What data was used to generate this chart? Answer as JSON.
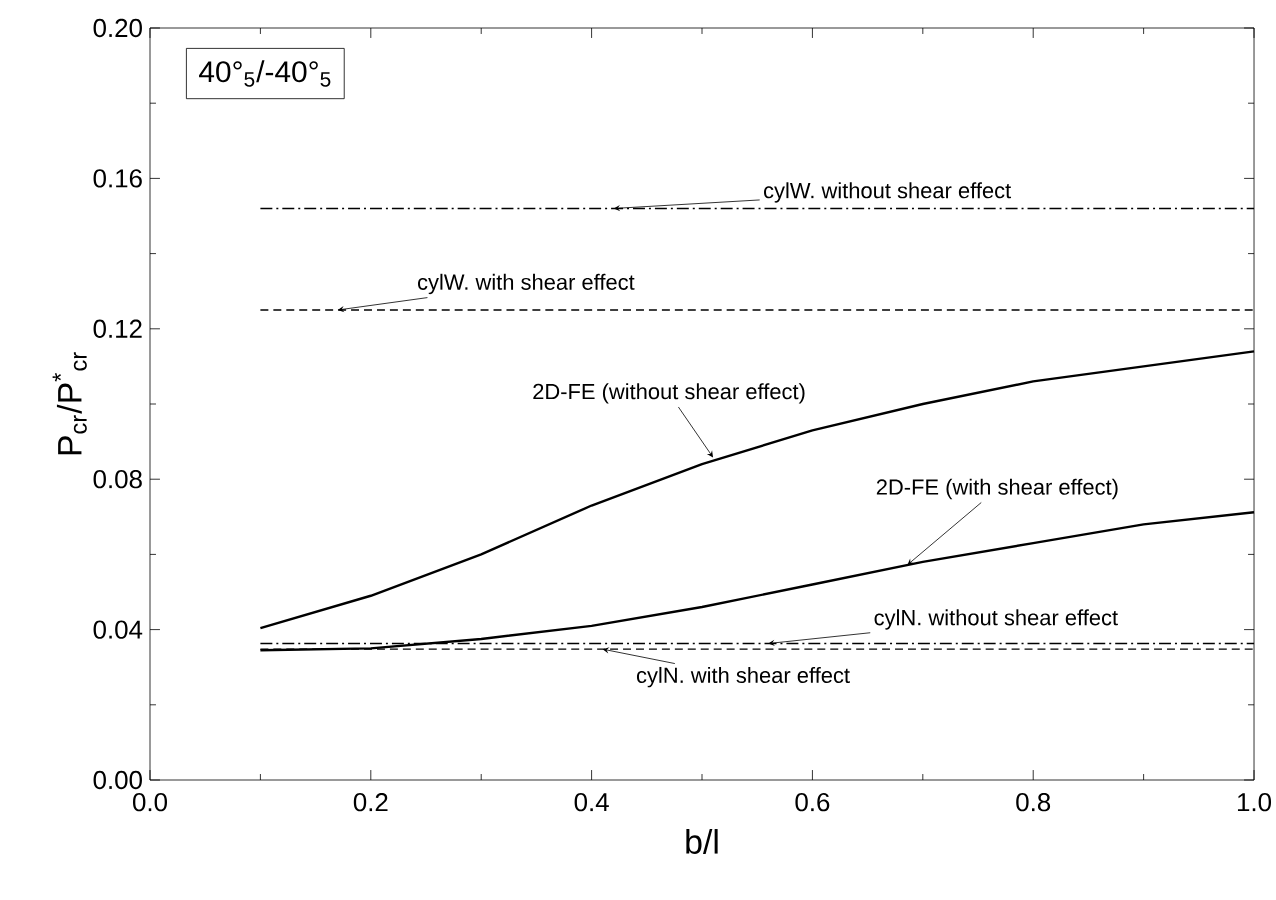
{
  "chart_data": {
    "type": "line",
    "xlabel": "b/l",
    "ylabel": "P$_{cr}$/P$^{*}$$_{cr}$",
    "xlim": [
      0,
      1
    ],
    "ylim": [
      0,
      0.2
    ],
    "xticks": [
      {
        "value": 0,
        "label": "0.0"
      },
      {
        "value": 0.2,
        "label": "0.2"
      },
      {
        "value": 0.4,
        "label": "0.4"
      },
      {
        "value": 0.6,
        "label": "0.6"
      },
      {
        "value": 0.8,
        "label": "0.8"
      },
      {
        "value": 1,
        "label": "1.0"
      }
    ],
    "yticks": [
      {
        "value": 0,
        "label": "0.00"
      },
      {
        "value": 0.04,
        "label": "0.04"
      },
      {
        "value": 0.08,
        "label": "0.08"
      },
      {
        "value": 0.12,
        "label": "0.12"
      },
      {
        "value": 0.16,
        "label": "0.16"
      },
      {
        "value": 0.2,
        "label": "0.20"
      }
    ],
    "series": [
      {
        "color": "#000000",
        "line_style": "dotted",
        "x": [
          0.1,
          1.0
        ],
        "values": [
          0.152,
          0.152
        ]
      },
      {
        "color": "#000000",
        "line_style": "dashed",
        "x": [
          0.1,
          1.0
        ],
        "values": [
          0.125,
          0.125
        ]
      },
      {
        "color": "#000000",
        "line_style": "solid",
        "x": [
          0.1,
          0.2,
          0.3,
          0.4,
          0.5,
          0.6,
          0.7,
          0.8,
          0.9,
          1.0
        ],
        "values": [
          0.0404,
          0.049,
          0.06,
          0.073,
          0.084,
          0.093,
          0.1,
          0.106,
          0.11,
          0.114
        ]
      },
      {
        "color": "#000000",
        "line_style": "solid",
        "x": [
          0.1,
          0.2,
          0.3,
          0.4,
          0.5,
          0.6,
          0.7,
          0.8,
          0.9,
          1.0
        ],
        "values": [
          0.0345,
          0.035,
          0.0375,
          0.041,
          0.046,
          0.052,
          0.058,
          0.063,
          0.068,
          0.0712
        ]
      },
      {
        "color": "#000000",
        "line_style": "dotted",
        "x": [
          0.1,
          1.0
        ],
        "values": [
          0.0363,
          0.0363
        ]
      },
      {
        "color": "#000000",
        "line_style": "dashed",
        "x": [
          0.1,
          1.0
        ],
        "values": [
          0.0348,
          0.0348
        ]
      }
    ],
    "annotations": [
      "40°$_{5}$/-40°$_{5}$",
      {
        "text": "cylW.  without shear effect",
        "x": 0.42,
        "y": 0.152
      },
      {
        "text": "cylW.  with shear effect",
        "x": 0.17,
        "y": 0.125
      },
      {
        "text": "2D-FE (without shear effect)",
        "x": 0.51,
        "y": 0.0858
      },
      {
        "text": "2D-FE  (with shear effect)",
        "x": 0.686,
        "y": 0.0572
      },
      {
        "text": "cylN.  without shear effect",
        "x": 0.56,
        "y": 0.0363
      },
      {
        "text": "cylN.  with shear effect",
        "x": 0.41,
        "y": 0.0348
      }
    ],
    "grid": false,
    "marker": "none"
  }
}
